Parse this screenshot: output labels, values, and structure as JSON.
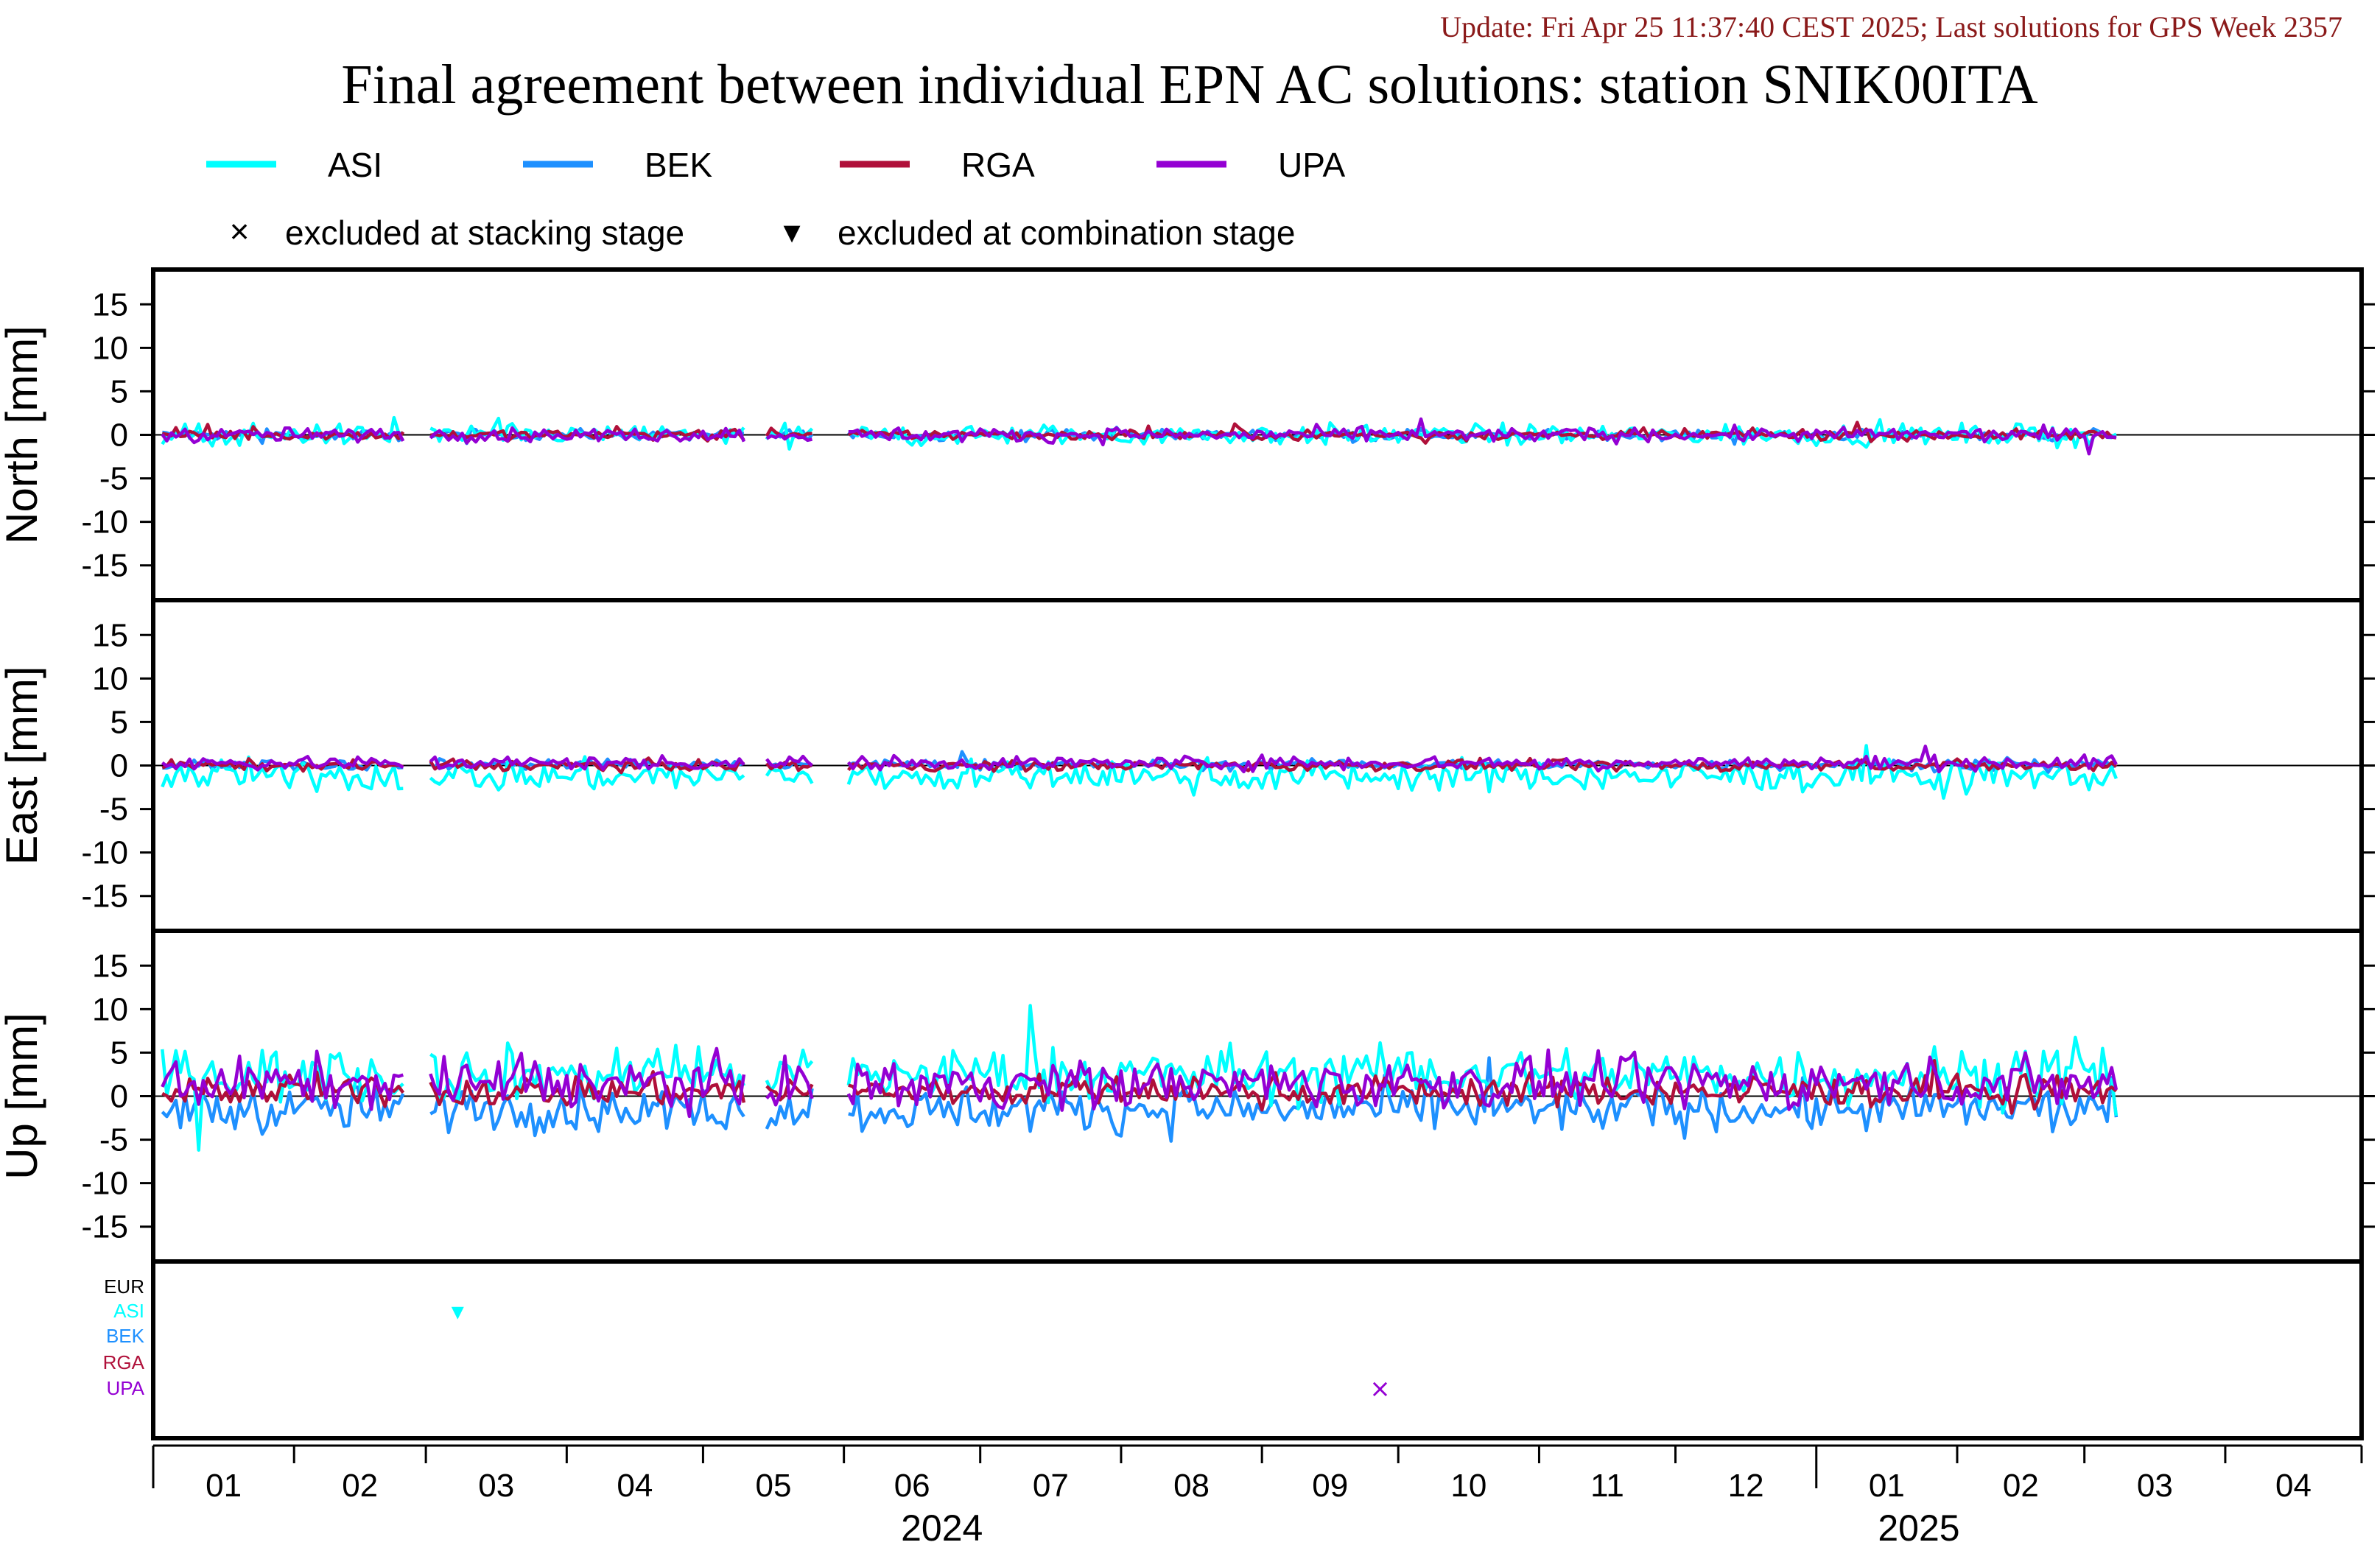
{
  "header": {
    "update_text": "Update: Fri Apr 25 11:37:40 CEST 2025; Last solutions for GPS Week 2357",
    "title": "Final agreement between individual EPN AC solutions: station SNIK00ITA"
  },
  "legend": {
    "series": [
      {
        "name": "ASI",
        "color": "#00ffff"
      },
      {
        "name": "BEK",
        "color": "#1e90ff"
      },
      {
        "name": "RGA",
        "color": "#b0103a"
      },
      {
        "name": "UPA",
        "color": "#9400d3"
      }
    ],
    "markers": [
      {
        "symbol": "×",
        "label": "excluded at stacking stage"
      },
      {
        "symbol": "▾",
        "label": "excluded at combination stage"
      }
    ]
  },
  "chart_data": {
    "type": "line",
    "x_axis": {
      "unit": "month",
      "range": [
        "2024-01-01",
        "2025-05-01"
      ],
      "month_labels": [
        "01",
        "02",
        "03",
        "04",
        "05",
        "06",
        "07",
        "08",
        "09",
        "10",
        "11",
        "12",
        "01",
        "02",
        "03",
        "04"
      ],
      "year_labels": [
        {
          "text": "2024",
          "month_index": 6
        },
        {
          "text": "2025",
          "month_index": 13
        }
      ]
    },
    "y_ticks": [
      "15",
      "10",
      "5",
      "0",
      "-5",
      "-10",
      "-15"
    ],
    "panels": [
      {
        "ylabel": "North [mm]",
        "ylim": [
          -19,
          19
        ],
        "series": {
          "ASI": {
            "bias": 0.0,
            "noise": 0.6
          },
          "BEK": {
            "bias": 0.0,
            "noise": 0.3
          },
          "RGA": {
            "bias": 0.0,
            "noise": 0.3
          },
          "UPA": {
            "bias": 0.0,
            "noise": 0.4
          }
        }
      },
      {
        "ylabel": "East [mm]",
        "ylim": [
          -19,
          19
        ],
        "series": {
          "ASI": {
            "bias": -1.2,
            "noise": 0.9
          },
          "BEK": {
            "bias": 0.1,
            "noise": 0.3
          },
          "RGA": {
            "bias": 0.0,
            "noise": 0.3
          },
          "UPA": {
            "bias": 0.3,
            "noise": 0.4
          }
        }
      },
      {
        "ylabel": "Up [mm]",
        "ylim": [
          -19,
          19
        ],
        "series": {
          "ASI": {
            "bias": 2.5,
            "noise": 1.6
          },
          "BEK": {
            "bias": -1.5,
            "noise": 1.3
          },
          "RGA": {
            "bias": 0.6,
            "noise": 0.9
          },
          "UPA": {
            "bias": 1.5,
            "noise": 1.4
          }
        }
      }
    ],
    "data_gaps": [
      [
        "2024-02-26",
        "2024-03-01"
      ],
      [
        "2024-05-11",
        "2024-05-14"
      ],
      [
        "2024-05-26",
        "2024-06-01"
      ]
    ],
    "last_epoch": "2025-03-08",
    "exclusions": {
      "ac_labels": [
        {
          "name": "EUR",
          "color": "#000000"
        },
        {
          "name": "ASI",
          "color": "#00ffff"
        },
        {
          "name": "BEK",
          "color": "#1e90ff"
        },
        {
          "name": "RGA",
          "color": "#b0103a"
        },
        {
          "name": "UPA",
          "color": "#9400d3"
        }
      ],
      "events": [
        {
          "ac": "ASI",
          "type": "combination",
          "date": "2024-03-08",
          "symbol": "▾",
          "color": "#00ffff"
        },
        {
          "ac": "UPA",
          "type": "stacking",
          "date": "2024-09-27",
          "symbol": "×",
          "color": "#9400d3"
        }
      ]
    }
  }
}
